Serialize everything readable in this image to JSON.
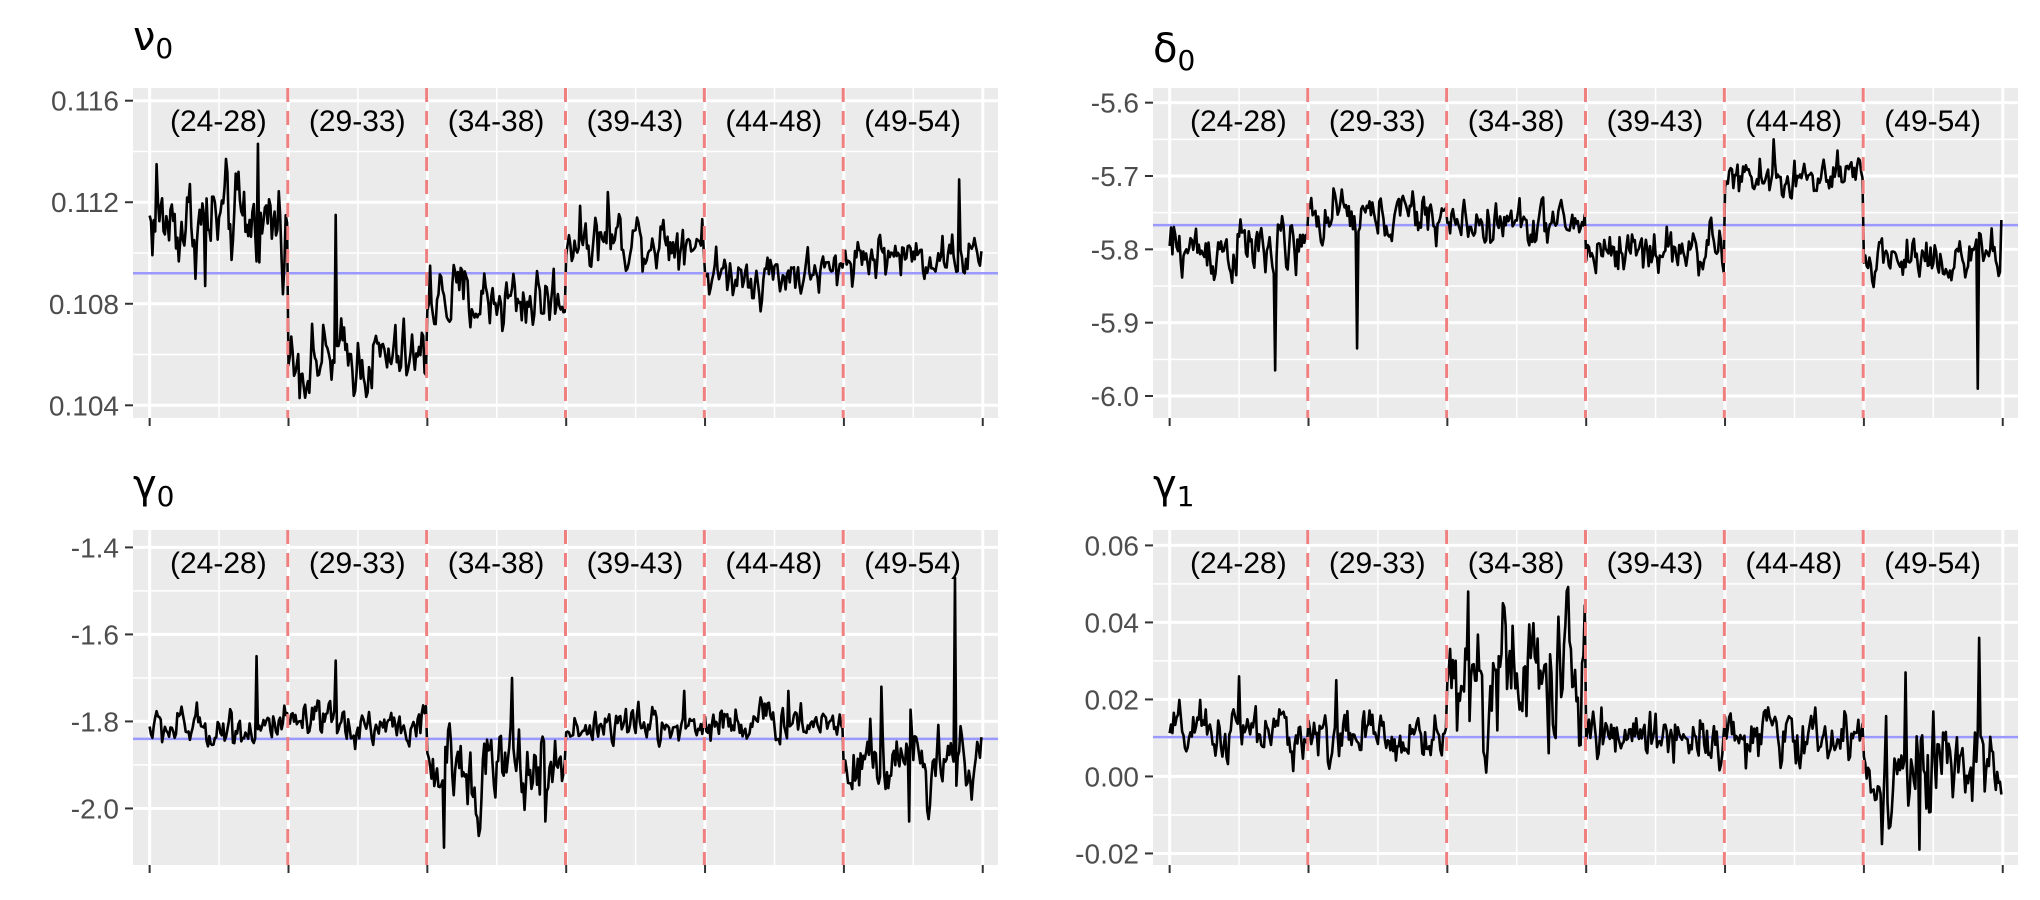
{
  "colors": {
    "panel_bg": "#EBEBEB",
    "grid": "#FFFFFF",
    "series": "#000000",
    "reference": "#9999FF",
    "breaks": "#F08080",
    "tick_text": "#4D4D4D"
  },
  "chart_data": [
    {
      "type": "line",
      "title": "ν",
      "title_sub": "0",
      "ylim": [
        0.1035,
        0.1165
      ],
      "yticks": [
        0.104,
        0.108,
        0.112,
        0.116
      ],
      "ytick_labels": [
        "0.104",
        "0.108",
        "0.112",
        "0.116"
      ],
      "n_points": 600,
      "segment_labels": [
        "(24-28)",
        "(29-33)",
        "(34-38)",
        "(39-43)",
        "(44-48)",
        "(49-54)"
      ],
      "break_positions": [
        100,
        200,
        300,
        400,
        500
      ],
      "reference_line": 0.1092,
      "segments": [
        {
          "label": "(24-28)",
          "mean": 0.1112,
          "noise": 0.0008,
          "spikes": [
            {
              "at": 78,
              "value": 0.1143
            },
            {
              "at": 5,
              "value": 0.1135
            },
            {
              "at": 40,
              "value": 0.1087
            }
          ]
        },
        {
          "label": "(29-33)",
          "mean": 0.1058,
          "noise": 0.0006,
          "spikes": [
            {
              "at": 34,
              "value": 0.1115
            },
            {
              "at": 12,
              "value": 0.1043
            }
          ]
        },
        {
          "label": "(34-38)",
          "mean": 0.1082,
          "noise": 0.0006,
          "spikes": [
            {
              "at": 2,
              "value": 0.1095
            }
          ]
        },
        {
          "label": "(39-43)",
          "mean": 0.1106,
          "noise": 0.0005,
          "spikes": [
            {
              "at": 30,
              "value": 0.1124
            }
          ]
        },
        {
          "label": "(44-48)",
          "mean": 0.1092,
          "noise": 0.0004,
          "spikes": [
            {
              "at": 40,
              "value": 0.1077
            }
          ]
        },
        {
          "label": "(49-54)",
          "mean": 0.1099,
          "noise": 0.0004,
          "spikes": [
            {
              "at": 83,
              "value": 0.1129
            }
          ]
        }
      ]
    },
    {
      "type": "line",
      "title": "δ",
      "title_sub": "0",
      "ylim": [
        -6.03,
        -5.58
      ],
      "yticks": [
        -6.0,
        -5.9,
        -5.8,
        -5.7,
        -5.6
      ],
      "ytick_labels": [
        "-6.0",
        "-5.9",
        "-5.8",
        "-5.7",
        "-5.6"
      ],
      "n_points": 600,
      "segment_labels": [
        "(24-28)",
        "(29-33)",
        "(34-38)",
        "(39-43)",
        "(44-48)",
        "(49-54)"
      ],
      "break_positions": [
        100,
        200,
        300,
        400,
        500
      ],
      "reference_line": -5.767,
      "segments": [
        {
          "label": "(24-28)",
          "mean": -5.8,
          "noise": 0.018,
          "spikes": [
            {
              "at": 76,
              "value": -5.965
            }
          ]
        },
        {
          "label": "(29-33)",
          "mean": -5.755,
          "noise": 0.015,
          "spikes": [
            {
              "at": 35,
              "value": -5.935
            }
          ]
        },
        {
          "label": "(34-38)",
          "mean": -5.765,
          "noise": 0.013,
          "spikes": []
        },
        {
          "label": "(39-43)",
          "mean": -5.8,
          "noise": 0.015,
          "spikes": []
        },
        {
          "label": "(44-48)",
          "mean": -5.705,
          "noise": 0.013,
          "spikes": [
            {
              "at": 35,
              "value": -5.65
            }
          ]
        },
        {
          "label": "(49-54)",
          "mean": -5.81,
          "noise": 0.015,
          "spikes": [
            {
              "at": 82,
              "value": -5.99
            },
            {
              "at": 99,
              "value": -5.76
            }
          ]
        }
      ]
    },
    {
      "type": "line",
      "title": "γ",
      "title_sub": "0",
      "ylim": [
        -2.13,
        -1.36
      ],
      "yticks": [
        -2.0,
        -1.8,
        -1.6,
        -1.4
      ],
      "ytick_labels": [
        "-2.0",
        "-1.8",
        "-1.6",
        "-1.4"
      ],
      "n_points": 600,
      "segment_labels": [
        "(24-28)",
        "(29-33)",
        "(34-38)",
        "(39-43)",
        "(44-48)",
        "(49-54)"
      ],
      "break_positions": [
        100,
        200,
        300,
        400,
        500
      ],
      "reference_line": -1.84,
      "segments": [
        {
          "label": "(24-28)",
          "mean": -1.815,
          "noise": 0.02,
          "spikes": [
            {
              "at": 77,
              "value": -1.65
            }
          ]
        },
        {
          "label": "(29-33)",
          "mean": -1.81,
          "noise": 0.02,
          "spikes": [
            {
              "at": 34,
              "value": -1.66
            }
          ]
        },
        {
          "label": "(34-38)",
          "mean": -1.91,
          "noise": 0.04,
          "spikes": [
            {
              "at": 12,
              "value": -2.09
            },
            {
              "at": 61,
              "value": -1.7
            },
            {
              "at": 85,
              "value": -2.03
            }
          ]
        },
        {
          "label": "(39-43)",
          "mean": -1.81,
          "noise": 0.02,
          "spikes": [
            {
              "at": 85,
              "value": -1.73
            }
          ]
        },
        {
          "label": "(44-48)",
          "mean": -1.8,
          "noise": 0.02,
          "spikes": [
            {
              "at": 60,
              "value": -1.73
            }
          ]
        },
        {
          "label": "(49-54)",
          "mean": -1.88,
          "noise": 0.04,
          "spikes": [
            {
              "at": 80,
              "value": -1.47
            },
            {
              "at": 47,
              "value": -2.03
            },
            {
              "at": 27,
              "value": -1.72
            }
          ]
        }
      ]
    },
    {
      "type": "line",
      "title": "γ",
      "title_sub": "1",
      "ylim": [
        -0.023,
        0.064
      ],
      "yticks": [
        -0.02,
        0.0,
        0.02,
        0.04,
        0.06
      ],
      "ytick_labels": [
        "-0.02",
        "0.00",
        "0.02",
        "0.04",
        "0.06"
      ],
      "n_points": 600,
      "segment_labels": [
        "(24-28)",
        "(29-33)",
        "(34-38)",
        "(39-43)",
        "(44-48)",
        "(49-54)"
      ],
      "break_positions": [
        100,
        200,
        300,
        400,
        500
      ],
      "reference_line": 0.0102,
      "segments": [
        {
          "label": "(24-28)",
          "mean": 0.011,
          "noise": 0.003,
          "spikes": [
            {
              "at": 50,
              "value": 0.026
            }
          ]
        },
        {
          "label": "(29-33)",
          "mean": 0.01,
          "noise": 0.003,
          "spikes": [
            {
              "at": 20,
              "value": 0.025
            }
          ]
        },
        {
          "label": "(34-38)",
          "mean": 0.026,
          "noise": 0.008,
          "spikes": [
            {
              "at": 15,
              "value": 0.048
            },
            {
              "at": 28,
              "value": 0.001
            },
            {
              "at": 40,
              "value": 0.045
            }
          ]
        },
        {
          "label": "(39-43)",
          "mean": 0.011,
          "noise": 0.003,
          "spikes": []
        },
        {
          "label": "(44-48)",
          "mean": 0.01,
          "noise": 0.003,
          "spikes": []
        },
        {
          "label": "(49-54)",
          "mean": 0.001,
          "noise": 0.006,
          "spikes": [
            {
              "at": 83,
              "value": 0.036
            },
            {
              "at": 40,
              "value": -0.019
            },
            {
              "at": 30,
              "value": 0.027
            }
          ]
        }
      ]
    }
  ]
}
